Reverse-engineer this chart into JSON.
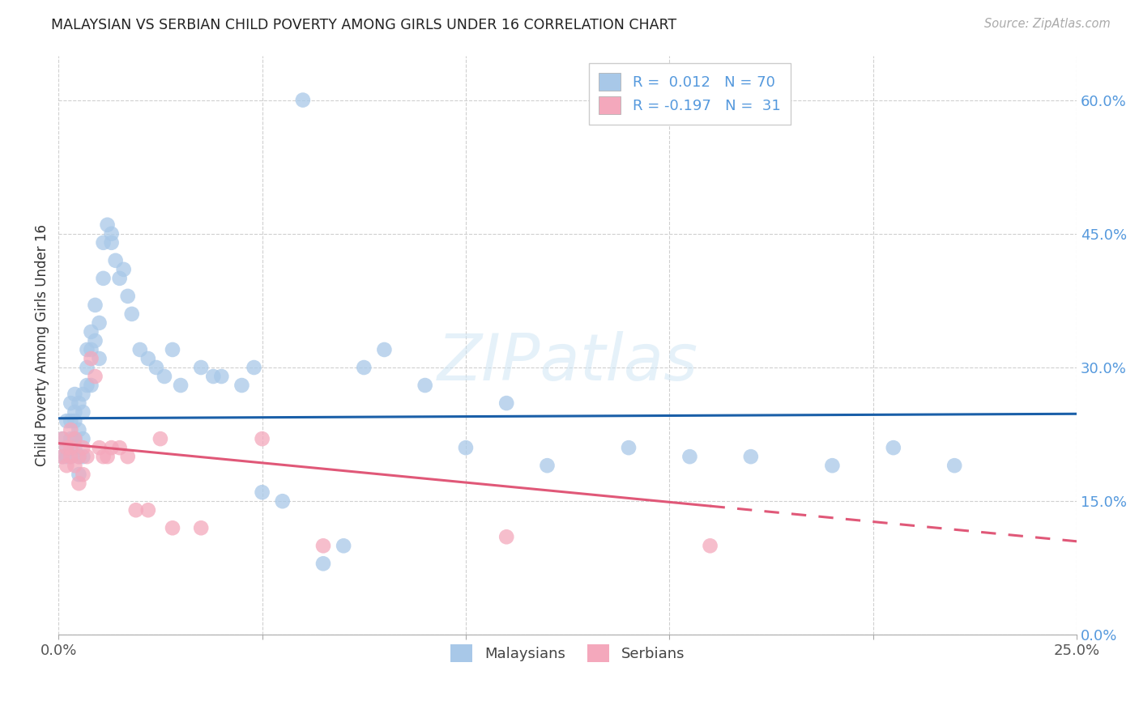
{
  "title": "MALAYSIAN VS SERBIAN CHILD POVERTY AMONG GIRLS UNDER 16 CORRELATION CHART",
  "source": "Source: ZipAtlas.com",
  "ylabel": "Child Poverty Among Girls Under 16",
  "xmin": 0.0,
  "xmax": 0.25,
  "ymin": 0.0,
  "ymax": 0.65,
  "yticks": [
    0.0,
    0.15,
    0.3,
    0.45,
    0.6
  ],
  "xtick_vals": [
    0.0,
    0.05,
    0.1,
    0.15,
    0.2,
    0.25
  ],
  "grid_color": "#d0d0d0",
  "bg_color": "#ffffff",
  "malaysian_color": "#a8c8e8",
  "serbian_color": "#f4a8bc",
  "trend_blue_color": "#1a5fa8",
  "trend_pink_color": "#e05878",
  "legend_R_blue": "0.012",
  "legend_N_blue": "70",
  "legend_R_pink": "-0.197",
  "legend_N_pink": "31",
  "mal_x": [
    0.001,
    0.001,
    0.002,
    0.002,
    0.002,
    0.003,
    0.003,
    0.003,
    0.003,
    0.004,
    0.004,
    0.004,
    0.004,
    0.004,
    0.005,
    0.005,
    0.005,
    0.005,
    0.006,
    0.006,
    0.006,
    0.006,
    0.007,
    0.007,
    0.007,
    0.008,
    0.008,
    0.008,
    0.009,
    0.009,
    0.01,
    0.01,
    0.011,
    0.011,
    0.012,
    0.013,
    0.013,
    0.014,
    0.015,
    0.016,
    0.017,
    0.018,
    0.02,
    0.022,
    0.024,
    0.026,
    0.028,
    0.03,
    0.035,
    0.038,
    0.04,
    0.045,
    0.048,
    0.05,
    0.055,
    0.06,
    0.065,
    0.07,
    0.075,
    0.08,
    0.09,
    0.1,
    0.11,
    0.12,
    0.14,
    0.155,
    0.17,
    0.19,
    0.205,
    0.22
  ],
  "mal_y": [
    0.2,
    0.22,
    0.21,
    0.24,
    0.2,
    0.22,
    0.24,
    0.26,
    0.2,
    0.25,
    0.22,
    0.27,
    0.24,
    0.21,
    0.26,
    0.23,
    0.2,
    0.18,
    0.25,
    0.27,
    0.22,
    0.2,
    0.3,
    0.32,
    0.28,
    0.32,
    0.34,
    0.28,
    0.37,
    0.33,
    0.31,
    0.35,
    0.4,
    0.44,
    0.46,
    0.45,
    0.44,
    0.42,
    0.4,
    0.41,
    0.38,
    0.36,
    0.32,
    0.31,
    0.3,
    0.29,
    0.32,
    0.28,
    0.3,
    0.29,
    0.29,
    0.28,
    0.3,
    0.16,
    0.15,
    0.6,
    0.08,
    0.1,
    0.3,
    0.32,
    0.28,
    0.21,
    0.26,
    0.19,
    0.21,
    0.2,
    0.2,
    0.19,
    0.21,
    0.19
  ],
  "ser_x": [
    0.001,
    0.001,
    0.002,
    0.002,
    0.003,
    0.003,
    0.003,
    0.004,
    0.004,
    0.005,
    0.005,
    0.006,
    0.006,
    0.007,
    0.008,
    0.009,
    0.01,
    0.011,
    0.012,
    0.013,
    0.015,
    0.017,
    0.019,
    0.022,
    0.025,
    0.028,
    0.035,
    0.05,
    0.065,
    0.11,
    0.16
  ],
  "ser_y": [
    0.2,
    0.22,
    0.19,
    0.21,
    0.2,
    0.23,
    0.21,
    0.22,
    0.19,
    0.2,
    0.17,
    0.21,
    0.18,
    0.2,
    0.31,
    0.29,
    0.21,
    0.2,
    0.2,
    0.21,
    0.21,
    0.2,
    0.14,
    0.14,
    0.22,
    0.12,
    0.12,
    0.22,
    0.1,
    0.11,
    0.1
  ],
  "mal_trend_y0": 0.243,
  "mal_trend_y1": 0.248,
  "ser_trend_y0": 0.215,
  "ser_trend_y1": 0.105
}
